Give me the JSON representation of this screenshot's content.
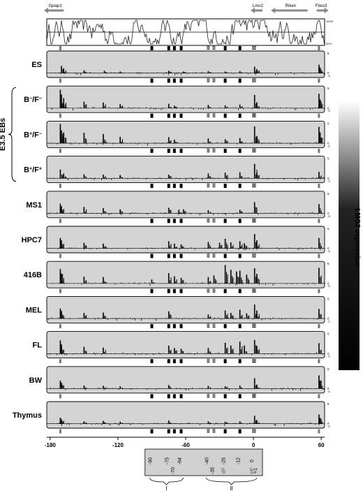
{
  "chart_data": {
    "type": "bar",
    "genes": [
      {
        "name": "Gpiap1",
        "start": -183,
        "end": -168,
        "dir": "left"
      },
      {
        "name": "Lmo2",
        "start": 0,
        "end": 8,
        "dir": "left"
      },
      {
        "name": "Riken",
        "start": 18,
        "end": 48,
        "dir": "left"
      },
      {
        "name": "Fbxo3",
        "start": 56,
        "end": 64,
        "dir": "right"
      }
    ],
    "conservation": {
      "top_label": "100%",
      "bottom_label": "50%"
    },
    "x_ticks": [
      -180,
      -120,
      -60,
      0,
      60
    ],
    "xlim": [
      -183,
      63
    ],
    "ylim": [
      -1,
      5
    ],
    "y_ticks": [
      "5",
      "0",
      "-1"
    ],
    "group_label": "E3.5 EBs",
    "expression_label": "LMO2 expression",
    "panels": [
      {
        "label": "ES",
        "sup": [],
        "expr": 0.0,
        "peaks": [
          [
            -170,
            1.8
          ],
          [
            -168,
            1.2
          ],
          [
            -150,
            0.7
          ],
          [
            -132,
            0.6
          ],
          [
            -118,
            0.4
          ],
          [
            -75,
            0.6
          ],
          [
            -62,
            0.4
          ],
          [
            -40,
            0.5
          ],
          [
            -25,
            0.4
          ],
          [
            -12,
            0.5
          ],
          [
            1,
            1.6
          ],
          [
            3,
            1.0
          ],
          [
            58,
            2.1
          ],
          [
            59,
            1.4
          ]
        ]
      },
      {
        "label": "B",
        "sup": [
          "−",
          "F",
          "−"
        ],
        "expr": 0.08,
        "peaks": [
          [
            -171,
            4.6
          ],
          [
            -170,
            3.4
          ],
          [
            -168,
            2.5
          ],
          [
            -150,
            1.6
          ],
          [
            -133,
            1.4
          ],
          [
            -118,
            1.0
          ],
          [
            -75,
            1.1
          ],
          [
            -70,
            0.6
          ],
          [
            -40,
            0.8
          ],
          [
            -25,
            0.7
          ],
          [
            -12,
            0.9
          ],
          [
            1,
            3.3
          ],
          [
            3,
            1.5
          ],
          [
            58,
            3.6
          ],
          [
            59,
            2.2
          ]
        ]
      },
      {
        "label": "B",
        "sup": [
          "+",
          "F",
          "−"
        ],
        "expr": 0.2,
        "peaks": [
          [
            -171,
            4.8
          ],
          [
            -170,
            3.2
          ],
          [
            -168,
            2.7
          ],
          [
            -150,
            2.6
          ],
          [
            -133,
            2.3
          ],
          [
            -118,
            1.6
          ],
          [
            -75,
            1.5
          ],
          [
            -70,
            0.9
          ],
          [
            -40,
            1.2
          ],
          [
            -25,
            1.0
          ],
          [
            -12,
            1.3
          ],
          [
            1,
            4.2
          ],
          [
            3,
            1.8
          ],
          [
            58,
            4.1
          ],
          [
            59,
            2.7
          ]
        ]
      },
      {
        "label": "B",
        "sup": [
          "+",
          "F",
          "+"
        ],
        "expr": 0.5,
        "peaks": [
          [
            -171,
            2.2
          ],
          [
            -168,
            1.2
          ],
          [
            -150,
            1.0
          ],
          [
            -133,
            0.9
          ],
          [
            -118,
            0.8
          ],
          [
            -75,
            0.9
          ],
          [
            -40,
            1.2
          ],
          [
            -25,
            1.4
          ],
          [
            -12,
            1.5
          ],
          [
            1,
            3.6
          ],
          [
            3,
            1.5
          ],
          [
            58,
            1.6
          ]
        ]
      },
      {
        "label": "MS1",
        "sup": [],
        "expr": 0.7,
        "peaks": [
          [
            -171,
            2.4
          ],
          [
            -170,
            1.8
          ],
          [
            -150,
            1.6
          ],
          [
            -133,
            1.3
          ],
          [
            -118,
            1.0
          ],
          [
            -75,
            1.4
          ],
          [
            -66,
            0.9
          ],
          [
            -62,
            1.0
          ],
          [
            -40,
            0.8
          ],
          [
            -12,
            0.9
          ],
          [
            1,
            2.8
          ],
          [
            58,
            2.3
          ]
        ]
      },
      {
        "label": "HPC7",
        "sup": [],
        "expr": 0.85,
        "peaks": [
          [
            -171,
            2.6
          ],
          [
            -170,
            2.0
          ],
          [
            -150,
            1.4
          ],
          [
            -133,
            1.2
          ],
          [
            -75,
            1.8
          ],
          [
            -70,
            1.2
          ],
          [
            -64,
            1.0
          ],
          [
            -40,
            1.6
          ],
          [
            -30,
            1.4
          ],
          [
            -25,
            2.4
          ],
          [
            -20,
            1.5
          ],
          [
            -12,
            1.8
          ],
          [
            -8,
            1.3
          ],
          [
            1,
            3.6
          ],
          [
            3,
            2.0
          ],
          [
            58,
            2.6
          ]
        ]
      },
      {
        "label": "416B",
        "sup": [],
        "expr": 1.0,
        "peaks": [
          [
            -171,
            3.6
          ],
          [
            -170,
            2.5
          ],
          [
            -150,
            1.7
          ],
          [
            -133,
            1.6
          ],
          [
            -90,
            1.0
          ],
          [
            -75,
            2.6
          ],
          [
            -70,
            1.8
          ],
          [
            -64,
            1.4
          ],
          [
            -40,
            1.6
          ],
          [
            -35,
            2.0
          ],
          [
            -25,
            4.6
          ],
          [
            -20,
            3.4
          ],
          [
            -15,
            3.0
          ],
          [
            -12,
            3.2
          ],
          [
            -6,
            2.2
          ],
          [
            1,
            3.8
          ],
          [
            3,
            2.4
          ],
          [
            58,
            3.9
          ]
        ]
      },
      {
        "label": "MEL",
        "sup": [],
        "expr": 0.9,
        "peaks": [
          [
            -171,
            2.5
          ],
          [
            -170,
            1.9
          ],
          [
            -150,
            1.4
          ],
          [
            -133,
            1.5
          ],
          [
            -75,
            1.8
          ],
          [
            -40,
            1.0
          ],
          [
            -25,
            2.0
          ],
          [
            -20,
            1.4
          ],
          [
            -12,
            2.2
          ],
          [
            -6,
            1.3
          ],
          [
            1,
            3.5
          ],
          [
            3,
            2.0
          ],
          [
            58,
            2.4
          ]
        ]
      },
      {
        "label": "FL",
        "sup": [],
        "expr": 0.75,
        "peaks": [
          [
            -171,
            3.3
          ],
          [
            -170,
            2.3
          ],
          [
            -150,
            1.7
          ],
          [
            -133,
            1.5
          ],
          [
            -75,
            2.0
          ],
          [
            -70,
            1.4
          ],
          [
            -64,
            1.2
          ],
          [
            -40,
            1.4
          ],
          [
            -25,
            2.7
          ],
          [
            -20,
            2.0
          ],
          [
            -12,
            3.0
          ],
          [
            -8,
            2.0
          ],
          [
            1,
            3.4
          ],
          [
            3,
            1.9
          ],
          [
            58,
            2.6
          ]
        ]
      },
      {
        "label": "BW",
        "sup": [],
        "expr": 0.25,
        "peaks": [
          [
            -171,
            2.0
          ],
          [
            -170,
            1.5
          ],
          [
            -150,
            0.8
          ],
          [
            -133,
            0.7
          ],
          [
            -118,
            0.6
          ],
          [
            -75,
            0.9
          ],
          [
            -40,
            0.7
          ],
          [
            -25,
            0.6
          ],
          [
            -12,
            0.8
          ],
          [
            1,
            2.6
          ],
          [
            3,
            1.0
          ],
          [
            58,
            3.3
          ],
          [
            59,
            2.0
          ]
        ]
      },
      {
        "label": "Thymus",
        "sup": [],
        "expr": 0.15,
        "peaks": [
          [
            -171,
            1.5
          ],
          [
            -170,
            1.1
          ],
          [
            -150,
            0.6
          ],
          [
            -133,
            0.7
          ],
          [
            -118,
            0.5
          ],
          [
            -75,
            0.8
          ],
          [
            -40,
            0.6
          ],
          [
            -25,
            0.5
          ],
          [
            -12,
            0.6
          ],
          [
            1,
            2.0
          ],
          [
            3,
            0.8
          ],
          [
            58,
            2.3
          ],
          [
            59,
            1.5
          ]
        ]
      }
    ],
    "element_positions": [
      -90,
      -75,
      -70,
      -64,
      -40,
      -35,
      -25,
      -12,
      0,
      1
    ],
    "element_labels": {
      "row1": [
        "-90",
        "-75",
        "-64",
        "-40",
        "-25",
        "-12",
        "0"
      ],
      "row2": [
        "-70",
        "-35",
        "dP",
        "pP",
        "+1"
      ]
    },
    "element_groups": [
      {
        "label": "I",
        "positions": [
          -90,
          -75,
          -70,
          -64
        ]
      },
      {
        "label": "II",
        "positions": [
          -40,
          -35,
          -25,
          -12,
          0,
          1
        ]
      }
    ],
    "colors": {
      "panel_bg": "#d4d4d4",
      "bar": "#000000",
      "line": "#222222",
      "gene_arrow": "#888888"
    }
  }
}
